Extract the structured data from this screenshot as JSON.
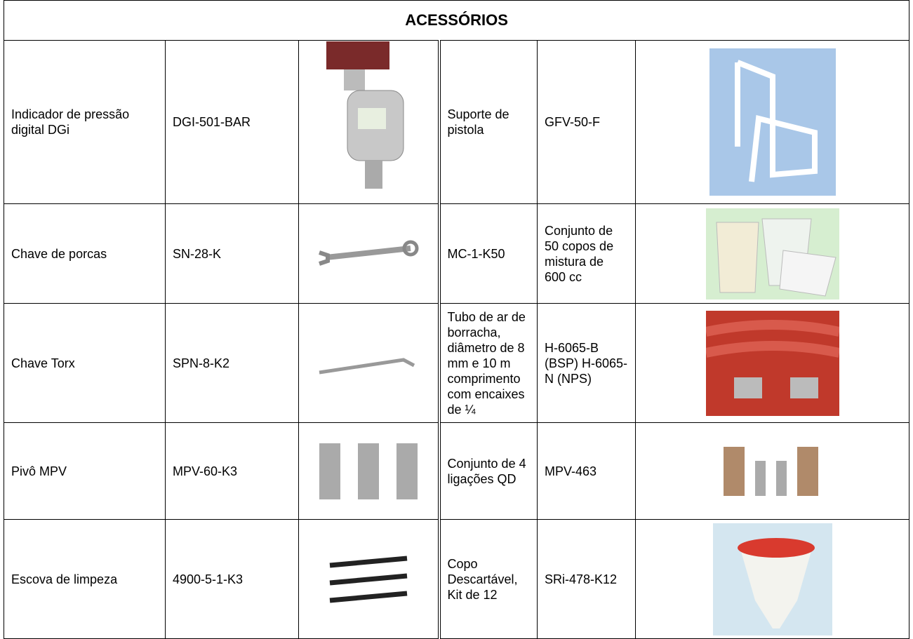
{
  "header": {
    "title": "ACESSÓRIOS"
  },
  "table": {
    "rows": [
      [
        "Indicador de pressão digital DGi",
        "DGI-501-BAR",
        "Suporte de pistola",
        "GFV-50-F"
      ],
      [
        "Chave de porcas",
        "SN-28-K",
        "MC-1-K50",
        "Conjunto de 50 copos de mistura de 600 cc"
      ],
      [
        "Chave Torx",
        "SPN-8-K2",
        "Tubo de ar de borracha, diâmetro de 8 mm e 10 m comprimento com encaixes de ¼",
        "H-6065-B (BSP) H-6065-N (NPS)"
      ],
      [
        "Pivô MPV",
        "MPV-60-K3",
        "Conjunto de 4 ligações QD",
        "MPV-463"
      ],
      [
        "Escova de limpeza",
        "4900-5-1-K3",
        "Copo Descartável, Kit de 12",
        "SRi-478-K12"
      ]
    ]
  }
}
